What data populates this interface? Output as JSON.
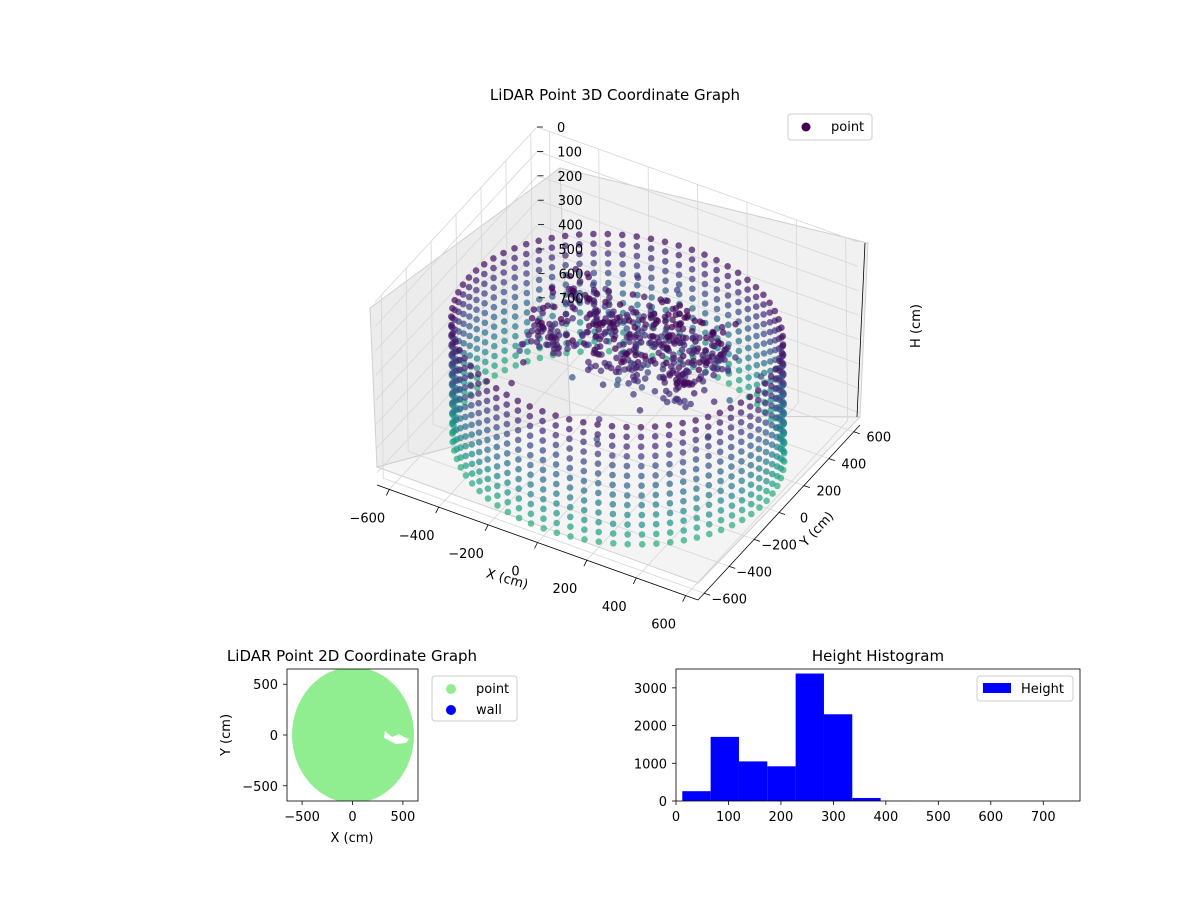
{
  "chart_data": [
    {
      "type": "scatter",
      "projection": "3d",
      "title": "LiDAR Point 3D Coordinate Graph",
      "xlabel": "X (cm)",
      "ylabel": "Y (cm)",
      "zlabel": "H (cm)",
      "legend": {
        "entries": [
          "point"
        ],
        "placement": "top-right"
      },
      "xticks": [
        -600,
        -400,
        -200,
        0,
        200,
        400,
        600
      ],
      "yticks": [
        -600,
        -400,
        -200,
        0,
        200,
        400,
        600
      ],
      "zticks": [
        0,
        100,
        200,
        300,
        400,
        500,
        600,
        700
      ],
      "xlim": [
        -650,
        650
      ],
      "ylim": [
        -650,
        650
      ],
      "zlim": [
        0,
        750
      ],
      "z_axis_inverted": true,
      "colormap": "viridis",
      "grid": true,
      "description_points": {
        "wall_ring": {
          "radius": 600,
          "height_range": [
            0,
            750
          ]
        },
        "interior_cluster": {
          "x_range": [
            -300,
            400
          ],
          "y_range": [
            -200,
            250
          ],
          "height_range": [
            200,
            350
          ]
        }
      }
    },
    {
      "type": "scatter",
      "title": "LiDAR Point 2D Coordinate Graph",
      "xlabel": "X (cm)",
      "ylabel": "Y (cm)",
      "xticks": [
        -500,
        0,
        500
      ],
      "yticks": [
        -500,
        0,
        500
      ],
      "xlim": [
        -650,
        650
      ],
      "ylim": [
        -650,
        650
      ],
      "legend": {
        "entries": [
          "point",
          "wall"
        ],
        "placement": "outside-right"
      },
      "series": [
        {
          "name": "point",
          "color": "#90ee90",
          "shape": "disk",
          "center": [
            0,
            0
          ],
          "radius": 620
        },
        {
          "name": "wall",
          "color": "#0000ff"
        }
      ],
      "gap_region": {
        "x_range": [
          320,
          560
        ],
        "y_range": [
          -80,
          60
        ]
      }
    },
    {
      "type": "bar",
      "title": "Height Histogram",
      "legend": {
        "entries": [
          "Height"
        ],
        "placement": "top-right"
      },
      "color": "#0000ff",
      "xticks": [
        0,
        100,
        200,
        300,
        400,
        500,
        600,
        700
      ],
      "yticks": [
        0,
        1000,
        2000,
        3000
      ],
      "xlim": [
        0,
        770
      ],
      "ylim": [
        0,
        3500
      ],
      "bins": [
        {
          "x0": 12,
          "x1": 66,
          "value": 260
        },
        {
          "x0": 66,
          "x1": 120,
          "value": 1700
        },
        {
          "x0": 120,
          "x1": 174,
          "value": 1050
        },
        {
          "x0": 174,
          "x1": 228,
          "value": 920
        },
        {
          "x0": 228,
          "x1": 282,
          "value": 3380
        },
        {
          "x0": 282,
          "x1": 336,
          "value": 2300
        },
        {
          "x0": 336,
          "x1": 390,
          "value": 80
        },
        {
          "x0": 390,
          "x1": 444,
          "value": 5
        },
        {
          "x0": 444,
          "x1": 498,
          "value": 2
        },
        {
          "x0": 498,
          "x1": 552,
          "value": 2
        },
        {
          "x0": 552,
          "x1": 606,
          "value": 2
        },
        {
          "x0": 606,
          "x1": 660,
          "value": 2
        },
        {
          "x0": 660,
          "x1": 714,
          "value": 2
        },
        {
          "x0": 714,
          "x1": 768,
          "value": 2
        }
      ]
    }
  ]
}
